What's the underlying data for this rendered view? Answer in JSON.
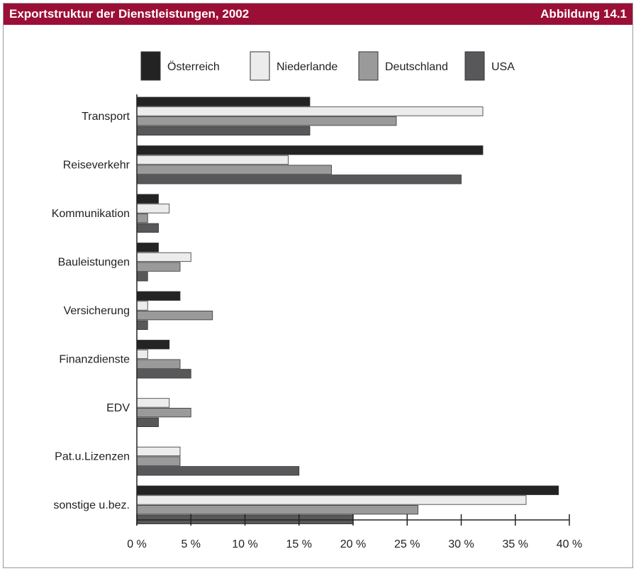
{
  "header": {
    "title": "Exportstruktur der Dienstleistungen, 2002",
    "figure_label": "Abbildung 14.1"
  },
  "colors": {
    "header_bg": "#9b0f36",
    "series": [
      "#232323",
      "#ececec",
      "#9a9a9a",
      "#58585a"
    ]
  },
  "chart_data": {
    "type": "bar",
    "orientation": "horizontal",
    "title": "Exportstruktur der Dienstleistungen, 2002",
    "categories": [
      "Transport",
      "Reiseverkehr",
      "Kommunikation",
      "Bauleistungen",
      "Versicherung",
      "Finanzdienste",
      "EDV",
      "Pat.u.Lizenzen",
      "sonstige u.bez."
    ],
    "series": [
      {
        "name": "Österreich",
        "values": [
          16,
          32,
          2,
          2,
          4,
          3,
          0,
          0,
          39
        ]
      },
      {
        "name": "Niederlande",
        "values": [
          32,
          14,
          3,
          5,
          1,
          1,
          3,
          4,
          36
        ]
      },
      {
        "name": "Deutschland",
        "values": [
          24,
          18,
          1,
          4,
          7,
          4,
          5,
          4,
          26
        ]
      },
      {
        "name": "USA",
        "values": [
          16,
          30,
          2,
          1,
          1,
          5,
          2,
          15,
          20
        ]
      }
    ],
    "xlim": [
      0,
      40
    ],
    "xticks": [
      0,
      5,
      10,
      15,
      20,
      25,
      30,
      35,
      40
    ],
    "xtick_labels": [
      "0 %",
      "5 %",
      "10 %",
      "15 %",
      "20 %",
      "25 %",
      "30 %",
      "35 %",
      "40 %"
    ],
    "xlabel": "",
    "ylabel": "",
    "legend_position": "top",
    "grid": false
  }
}
